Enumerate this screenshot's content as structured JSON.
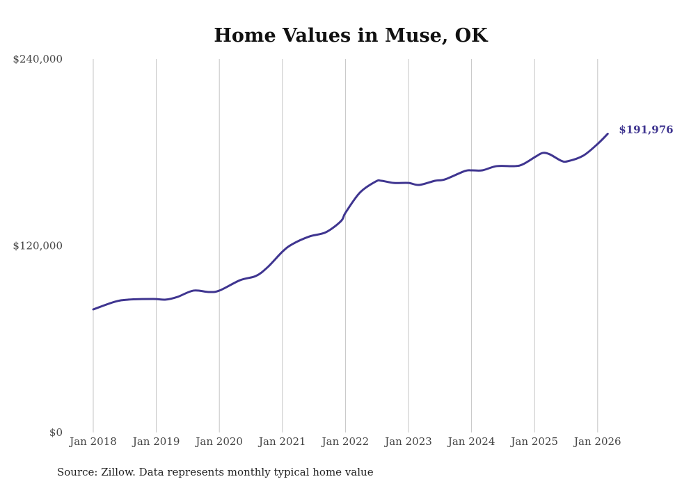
{
  "chart_data": {
    "type": "line",
    "title": "Home Values in Muse, OK",
    "xlabel": "",
    "ylabel": "",
    "ylim": [
      0,
      240000
    ],
    "xlim": [
      2018,
      2026.2
    ],
    "y_ticks": [
      0,
      120000,
      240000
    ],
    "y_tick_labels": [
      "$0",
      "$120,000",
      "$240,000"
    ],
    "x_ticks": [
      2018,
      2019,
      2020,
      2021,
      2022,
      2023,
      2024,
      2025,
      2026
    ],
    "x_tick_labels": [
      "Jan 2018",
      "Jan 2019",
      "Jan 2020",
      "Jan 2021",
      "Jan 2022",
      "Jan 2023",
      "Jan 2024",
      "Jan 2025",
      "Jan 2026"
    ],
    "grid": "vertical",
    "color": "#3f3590",
    "series": [
      {
        "name": "Typical home value",
        "x": [
          2018.0,
          2018.34,
          2018.56,
          2018.95,
          2019.15,
          2019.34,
          2019.59,
          2019.83,
          2020.0,
          2020.33,
          2020.58,
          2020.77,
          2021.0,
          2021.16,
          2021.43,
          2021.69,
          2021.93,
          2022.0,
          2022.23,
          2022.48,
          2022.57,
          2022.77,
          2023.0,
          2023.17,
          2023.42,
          2023.58,
          2023.89,
          2024.0,
          2024.17,
          2024.4,
          2024.69,
          2024.82,
          2025.02,
          2025.13,
          2025.24,
          2025.42,
          2025.52,
          2025.77,
          2026.0,
          2026.16
        ],
        "values": [
          79100,
          84000,
          85400,
          85800,
          85400,
          87200,
          91200,
          90300,
          91200,
          97900,
          100600,
          106400,
          116200,
          121100,
          126000,
          128700,
          135900,
          141200,
          154200,
          161300,
          161800,
          160400,
          160400,
          159100,
          161800,
          162700,
          168000,
          168500,
          168500,
          171200,
          171200,
          172500,
          177400,
          179700,
          178800,
          174700,
          174300,
          177900,
          185500,
          191976
        ]
      }
    ],
    "annotations": [
      "$191,976"
    ],
    "source": "Source: Zillow. Data represents monthly typical home value"
  }
}
